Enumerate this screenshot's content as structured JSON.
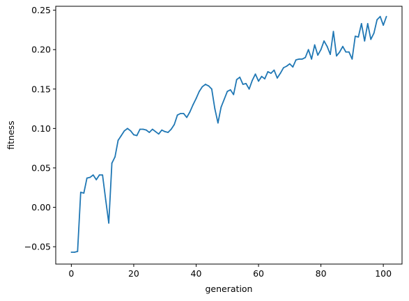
{
  "chart_data": {
    "type": "line",
    "title": "",
    "xlabel": "generation",
    "ylabel": "fitness",
    "xlim": [
      -5,
      106
    ],
    "ylim": [
      -0.072,
      0.255
    ],
    "x_ticks": [
      0,
      20,
      40,
      60,
      80,
      100
    ],
    "y_ticks": [
      -0.05,
      0.0,
      0.05,
      0.1,
      0.15,
      0.2,
      0.25
    ],
    "x_tick_labels": [
      "0",
      "20",
      "40",
      "60",
      "80",
      "100"
    ],
    "y_tick_labels": [
      "−0.05",
      "0.00",
      "0.05",
      "0.10",
      "0.15",
      "0.20",
      "0.25"
    ],
    "grid": false,
    "series": [
      {
        "color": "#1f77b4",
        "x": [
          0,
          1,
          2,
          3,
          4,
          5,
          6,
          7,
          8,
          9,
          10,
          11,
          12,
          13,
          14,
          15,
          16,
          17,
          18,
          19,
          20,
          21,
          22,
          23,
          24,
          25,
          26,
          27,
          28,
          29,
          30,
          31,
          32,
          33,
          34,
          35,
          36,
          37,
          38,
          39,
          40,
          41,
          42,
          43,
          44,
          45,
          46,
          47,
          48,
          49,
          50,
          51,
          52,
          53,
          54,
          55,
          56,
          57,
          58,
          59,
          60,
          61,
          62,
          63,
          64,
          65,
          66,
          67,
          68,
          69,
          70,
          71,
          72,
          73,
          74,
          75,
          76,
          77,
          78,
          79,
          80,
          81,
          82,
          83,
          84,
          85,
          86,
          87,
          88,
          89,
          90,
          91,
          92,
          93,
          94,
          95,
          96,
          97,
          98,
          99,
          100,
          101
        ],
        "y": [
          -0.057,
          -0.057,
          -0.056,
          0.019,
          0.018,
          0.037,
          0.038,
          0.041,
          0.035,
          0.041,
          0.041,
          0.01,
          -0.02,
          0.056,
          0.064,
          0.085,
          0.091,
          0.097,
          0.1,
          0.097,
          0.092,
          0.091,
          0.099,
          0.099,
          0.098,
          0.095,
          0.099,
          0.096,
          0.093,
          0.098,
          0.096,
          0.095,
          0.099,
          0.105,
          0.117,
          0.119,
          0.119,
          0.114,
          0.121,
          0.13,
          0.138,
          0.147,
          0.153,
          0.156,
          0.154,
          0.15,
          0.125,
          0.107,
          0.127,
          0.137,
          0.147,
          0.149,
          0.143,
          0.162,
          0.165,
          0.156,
          0.157,
          0.15,
          0.161,
          0.169,
          0.16,
          0.166,
          0.163,
          0.172,
          0.17,
          0.174,
          0.164,
          0.17,
          0.177,
          0.179,
          0.182,
          0.178,
          0.187,
          0.188,
          0.188,
          0.19,
          0.2,
          0.188,
          0.206,
          0.193,
          0.2,
          0.211,
          0.204,
          0.194,
          0.223,
          0.192,
          0.197,
          0.204,
          0.197,
          0.197,
          0.188,
          0.217,
          0.216,
          0.233,
          0.211,
          0.233,
          0.213,
          0.221,
          0.238,
          0.242,
          0.231,
          0.242
        ]
      }
    ]
  }
}
